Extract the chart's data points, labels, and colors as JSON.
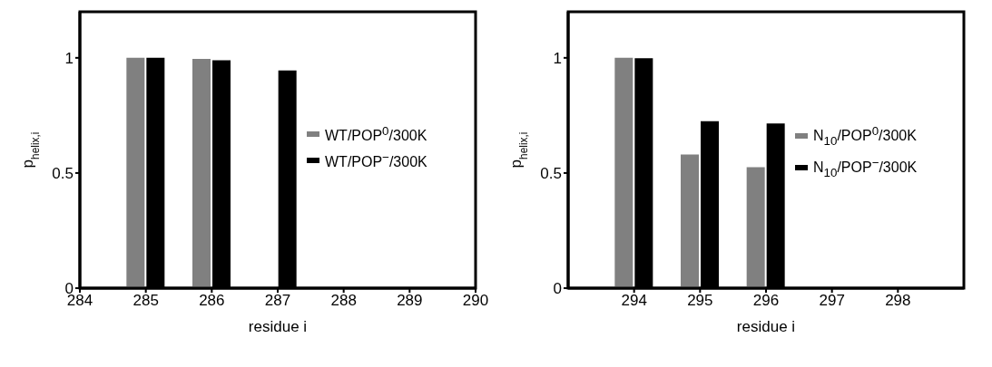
{
  "chart_data": [
    {
      "type": "bar",
      "xlabel": "residue i",
      "ylabel": "p$_{helix,i}$",
      "x": [
        285,
        286,
        287,
        288,
        289
      ],
      "xlim": [
        284,
        290
      ],
      "xticks": [
        284,
        285,
        286,
        287,
        288,
        289,
        290
      ],
      "ylim": [
        0,
        1.2
      ],
      "yticks": [
        0,
        0.5,
        1
      ],
      "legend": "right",
      "grid": false,
      "series": [
        {
          "name": "WT/POP$^{0}$/300K",
          "color": "#808080",
          "values": [
            1.0,
            0.995,
            0,
            0,
            0
          ]
        },
        {
          "name": "WT/POP$^{−}$/300K",
          "color": "#000000",
          "values": [
            1.0,
            0.99,
            0.945,
            0,
            0
          ]
        }
      ]
    },
    {
      "type": "bar",
      "xlabel": "residue i",
      "ylabel": "p$_{helix,i}$",
      "x": [
        294,
        295,
        296,
        297,
        298
      ],
      "xlim": [
        293,
        299
      ],
      "xticks": [
        294,
        295,
        296,
        297,
        298
      ],
      "ylim": [
        0,
        1.2
      ],
      "yticks": [
        0,
        0.5,
        1
      ],
      "legend": "right",
      "grid": false,
      "series": [
        {
          "name": "N$_{10}$/POP$^{0}$/300K",
          "color": "#808080",
          "values": [
            1.0,
            0.58,
            0.525,
            0,
            0
          ]
        },
        {
          "name": "N$_{10}$/POP$^{−}$/300K",
          "color": "#000000",
          "values": [
            0.998,
            0.725,
            0.715,
            0,
            0
          ]
        }
      ]
    }
  ]
}
